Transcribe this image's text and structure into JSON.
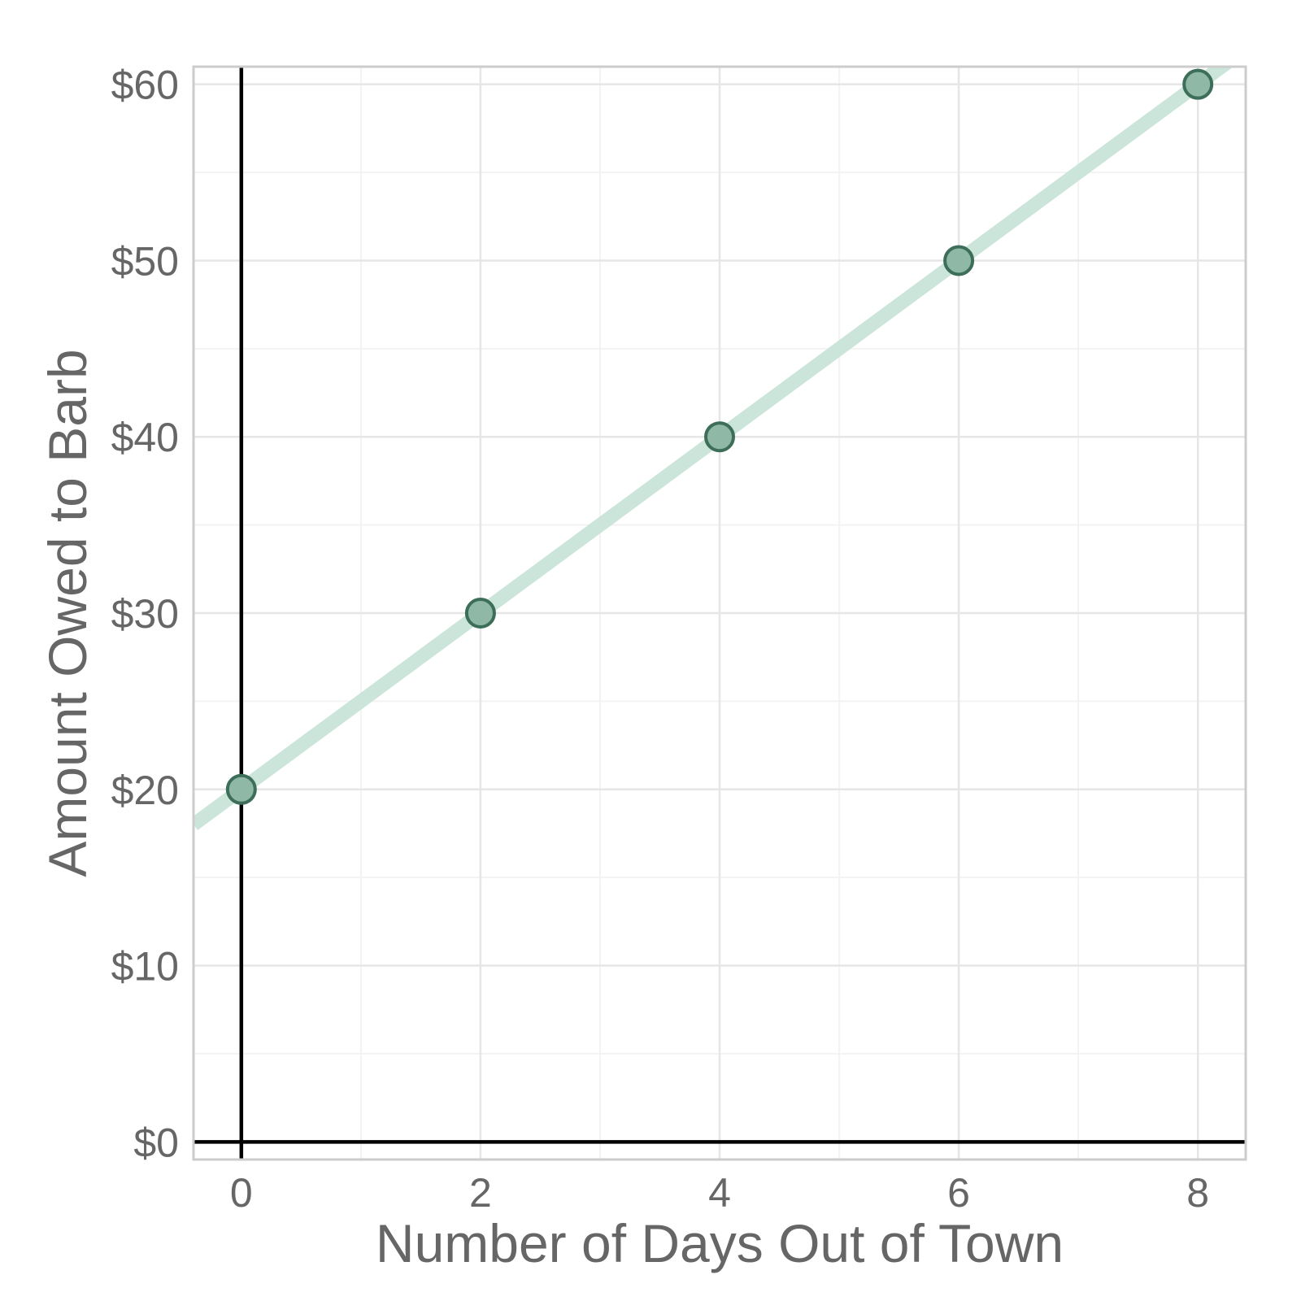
{
  "chart_data": {
    "type": "line",
    "title": "",
    "xlabel": "Number of Days Out of Town",
    "ylabel": "Amount Owed to Barb",
    "x": [
      0,
      2,
      4,
      6,
      8
    ],
    "series": [
      {
        "values": [
          20,
          30,
          40,
          50,
          60
        ]
      }
    ],
    "trend_line": {
      "intercept": 20,
      "slope": 5
    },
    "xlim": [
      -0.4,
      8.4
    ],
    "ylim": [
      -1,
      61
    ],
    "x_ticks": [
      0,
      2,
      4,
      6,
      8
    ],
    "x_tick_labels": [
      "0",
      "2",
      "4",
      "6",
      "8"
    ],
    "y_ticks": [
      0,
      10,
      20,
      30,
      40,
      50,
      60
    ],
    "y_tick_labels": [
      "$0",
      "$10",
      "$20",
      "$30",
      "$40",
      "$50",
      "$60"
    ],
    "grid": true,
    "legend": "none",
    "colors": {
      "line": "#cce5da",
      "point_fill": "#8fb8a6",
      "point_stroke": "#3d6e5a",
      "grid_major": "#e6e6e6",
      "grid_minor": "#f3f3f3",
      "panel_border": "#cccccc",
      "zero_lines": "#000000",
      "text": "#666666"
    }
  }
}
